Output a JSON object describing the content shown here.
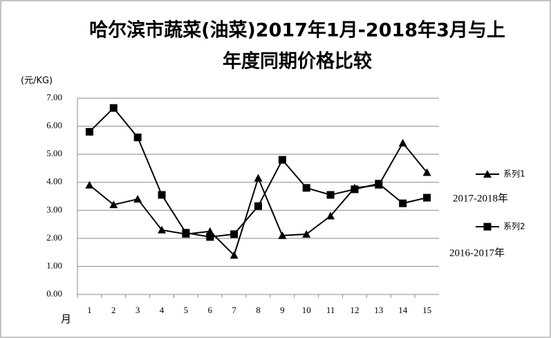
{
  "chart_data": {
    "type": "line",
    "title_lines": [
      "哈尔滨市蔬菜(油菜)2017年1月-2018年3月与上",
      "年度同期价格比较"
    ],
    "y_label": "(元/KG)",
    "x_label": "月",
    "categories": [
      "1",
      "2",
      "3",
      "4",
      "5",
      "6",
      "7",
      "8",
      "9",
      "10",
      "11",
      "12",
      "13",
      "14",
      "15"
    ],
    "series": [
      {
        "name": "系列1",
        "color": "#000000",
        "marker": "triangle",
        "values": [
          3.9,
          3.2,
          3.4,
          2.3,
          2.15,
          2.25,
          1.4,
          4.15,
          2.1,
          2.15,
          2.8,
          3.8,
          3.9,
          5.4,
          4.35
        ]
      },
      {
        "name": "系列2",
        "color": "#000000",
        "marker": "square",
        "values": [
          5.8,
          6.65,
          5.6,
          3.55,
          2.2,
          2.05,
          2.15,
          3.15,
          4.8,
          3.8,
          3.55,
          3.75,
          3.95,
          3.25,
          3.45
        ]
      }
    ],
    "annotations": [
      "2017-2018年",
      "2016-2017年"
    ],
    "ylim": [
      0,
      7
    ],
    "yticks": [
      {
        "value": 0,
        "label": "0.00"
      },
      {
        "value": 1,
        "label": "1.00"
      },
      {
        "value": 2,
        "label": "2.00"
      },
      {
        "value": 3,
        "label": "3.00"
      },
      {
        "value": 4,
        "label": "4.00"
      },
      {
        "value": 5,
        "label": "5.00"
      },
      {
        "value": 6,
        "label": "6.00"
      },
      {
        "value": 7,
        "label": "7.00"
      }
    ],
    "grid": true,
    "legend": "right"
  }
}
